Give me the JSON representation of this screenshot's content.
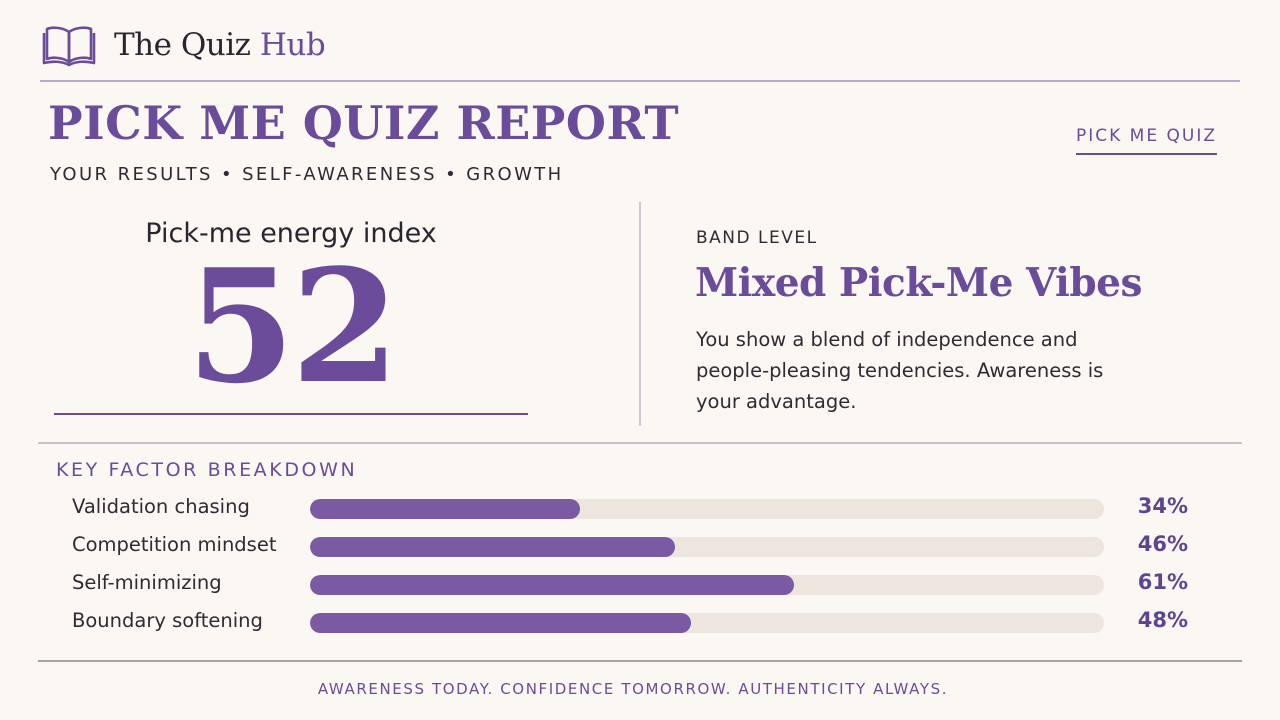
{
  "brand": {
    "name_primary": "The Quiz ",
    "name_accent": "Hub",
    "logo_icon": "open-book-icon"
  },
  "header": {
    "title": "PICK ME QUIZ REPORT",
    "subtitle": "YOUR RESULTS • SELF-AWARENESS • GROWTH",
    "tag": "PICK ME QUIZ"
  },
  "score": {
    "label": "Pick-me energy index",
    "value": "52"
  },
  "band": {
    "label": "BAND LEVEL",
    "name": "Mixed Pick-Me Vibes",
    "description": "You show a blend of independence and people-pleasing tendencies. Awareness is your advantage."
  },
  "breakdown": {
    "title": "KEY FACTOR BREAKDOWN",
    "factors": [
      {
        "label": "Validation chasing",
        "percent": 34,
        "percent_label": "34%"
      },
      {
        "label": "Competition mindset",
        "percent": 46,
        "percent_label": "46%"
      },
      {
        "label": "Self-minimizing",
        "percent": 61,
        "percent_label": "61%"
      },
      {
        "label": "Boundary softening",
        "percent": 48,
        "percent_label": "48%"
      }
    ]
  },
  "footer": {
    "text": "AWARENESS TODAY. CONFIDENCE TOMORROW. AUTHENTICITY ALWAYS."
  },
  "colors": {
    "accent": "#6b4c9a",
    "bar_fill": "#7a5aa2",
    "bar_track": "#ede5de",
    "background": "#fbf8f3"
  }
}
